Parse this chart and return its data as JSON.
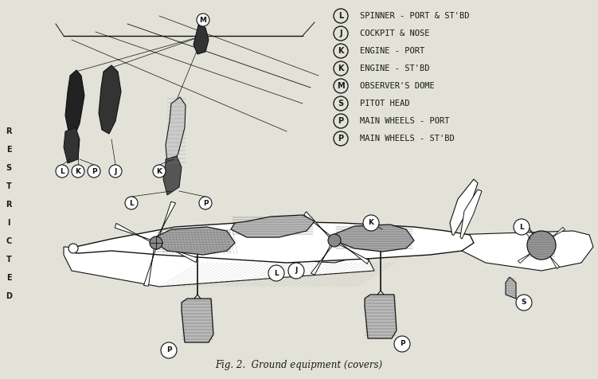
{
  "title": "Fig. 2.  Ground equipment (covers)",
  "title_fontsize": 8.5,
  "title_style": "italic",
  "bg_color": "#e8e8e0",
  "text_color": "#1a1a1a",
  "legend_items": [
    {
      "label": "L",
      "text": "SPINNER - PORT & ST'BD"
    },
    {
      "label": "J",
      "text": "COCKPIT & NOSE"
    },
    {
      "label": "K",
      "text": "ENGINE - PORT"
    },
    {
      "label": "K",
      "text": "ENGINE - ST'BD"
    },
    {
      "label": "M",
      "text": "OBSERVER'S DOME"
    },
    {
      "label": "S",
      "text": "PITOT HEAD"
    },
    {
      "label": "P",
      "text": "MAIN WHEELS - PORT"
    },
    {
      "label": "P",
      "text": "MAIN WHEELS - ST'BD"
    }
  ],
  "restricted_text": "RESTRICTED",
  "figsize": [
    7.51,
    4.76
  ],
  "dpi": 100
}
